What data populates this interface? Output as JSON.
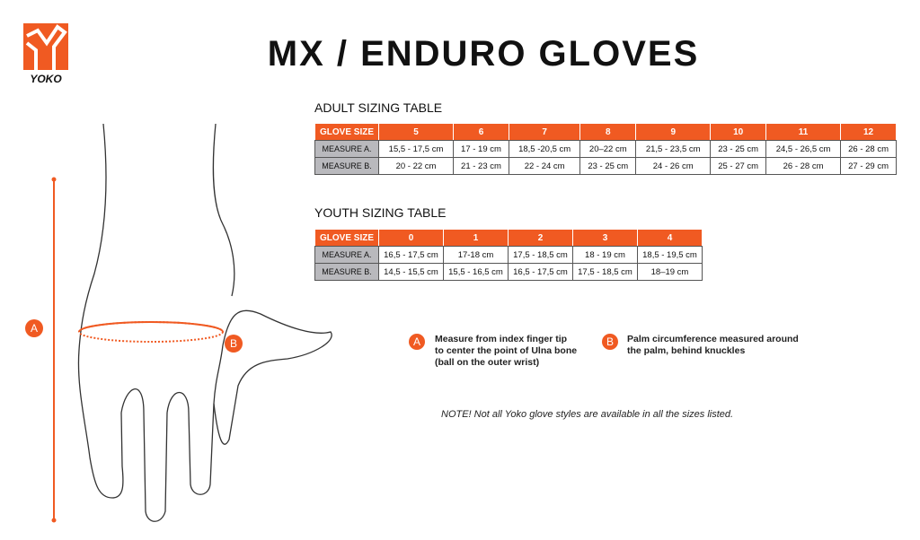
{
  "brand": {
    "logo_text": "YOKO",
    "accent": "#f05a22"
  },
  "title": "MX / ENDURO GLOVES",
  "adult": {
    "heading": "ADULT SIZING TABLE",
    "header": [
      "GLOVE SIZE",
      "5",
      "6",
      "7",
      "8",
      "9",
      "10",
      "11",
      "12"
    ],
    "rows": [
      [
        "MEASURE A.",
        "15,5 - 17,5 cm",
        "17 - 19 cm",
        "18,5 -20,5 cm",
        "20–22 cm",
        "21,5 - 23,5 cm",
        "23 - 25 cm",
        "24,5 - 26,5 cm",
        "26 - 28 cm"
      ],
      [
        "MEASURE B.",
        "20 - 22 cm",
        "21 - 23  cm",
        "22 - 24 cm",
        "23 - 25 cm",
        "24 - 26 cm",
        "25 - 27 cm",
        "26 - 28 cm",
        "27 - 29 cm"
      ]
    ]
  },
  "youth": {
    "heading": "YOUTH SIZING TABLE",
    "header": [
      "GLOVE SIZE",
      "0",
      "1",
      "2",
      "3",
      "4"
    ],
    "rows": [
      [
        "MEASURE A.",
        "16,5 - 17,5 cm",
        "17-18 cm",
        "17,5 - 18,5 cm",
        "18 - 19 cm",
        "18,5 - 19,5 cm"
      ],
      [
        "MEASURE B.",
        "14,5 - 15,5 cm",
        "15,5 - 16,5 cm",
        "16,5 - 17,5 cm",
        "17,5 - 18,5 cm",
        "18–19 cm"
      ]
    ]
  },
  "legend": {
    "a_marker": "A",
    "a_text": [
      "Measure from index finger tip",
      "to center the point of Ulna bone",
      "(ball on the outer wrist)"
    ],
    "b_marker": "B",
    "b_text": [
      "Palm circumference measured around",
      "the palm, behind knuckles"
    ]
  },
  "note": "NOTE! Not all Yoko glove styles are available in all the sizes listed."
}
